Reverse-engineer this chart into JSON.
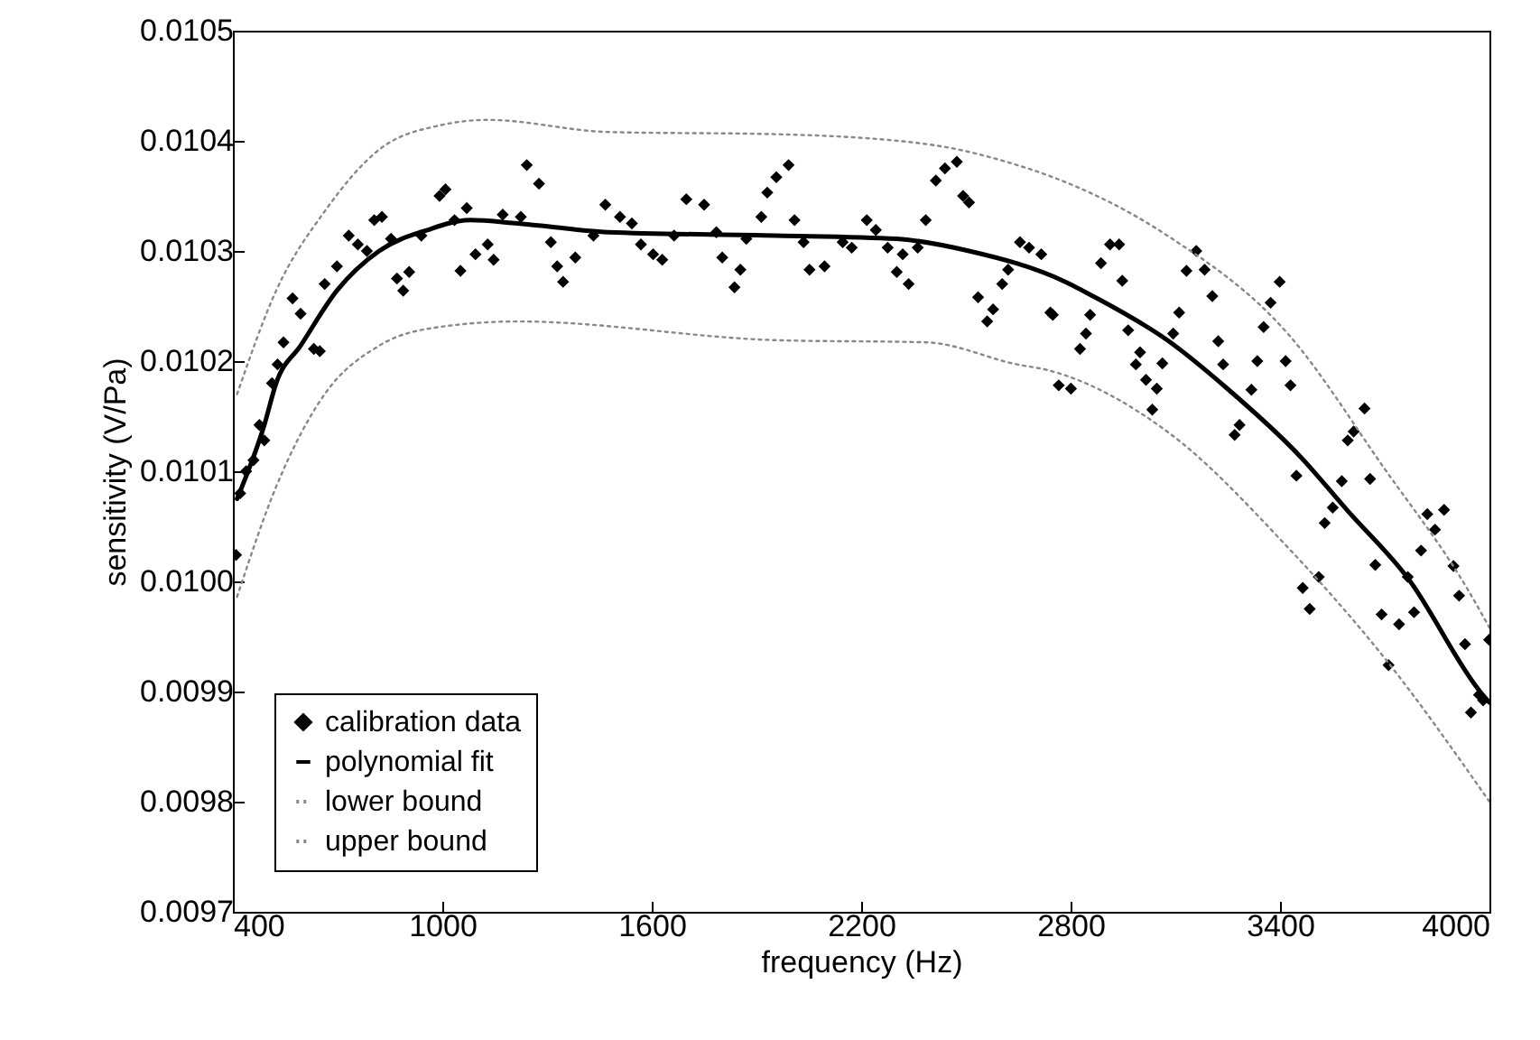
{
  "chart_data": {
    "type": "scatter",
    "xlabel": "frequency (Hz)",
    "ylabel": "sensitivity (V/Pa)",
    "xlim": [
      400,
      4000
    ],
    "xticks": [
      400,
      1000,
      1600,
      2200,
      2800,
      3400,
      4000
    ],
    "ylim": [
      0.0097,
      0.0105
    ],
    "yticks": [
      0.0097,
      0.0098,
      0.0099,
      {
        "value": 0.01,
        "label": "0.0100"
      },
      0.0101,
      0.0102,
      0.0103,
      0.0104,
      0.0105
    ],
    "grid": false,
    "legend": "bottom left",
    "series": [
      {
        "name": "calibration data",
        "marker": "diamond",
        "color": "#000000",
        "x": [
          409,
          421,
          438,
          459,
          476,
          490,
          512,
          528,
          545,
          571,
          594,
          632,
          649,
          663,
          698,
          732,
          758,
          784,
          805,
          827,
          853,
          870,
          888,
          905,
          940,
          992,
          1009,
          1035,
          1070,
          1052,
          1095,
          1130,
          1147,
          1173,
          1225,
          1242,
          1277,
          1311,
          1329,
          1346,
          1381,
          1433,
          1467,
          1509,
          1543,
          1569,
          1604,
          1630,
          1664,
          1699,
          1750,
          1785,
          1802,
          1854,
          1837,
          1871,
          1914,
          1931,
          1957,
          1992,
          2009,
          2035,
          2052,
          2095,
          2147,
          2173,
          2216,
          2242,
          2276,
          2302,
          2319,
          2336,
          2362,
          2385,
          2414,
          2440,
          2474,
          2492,
          2509,
          2535,
          2561,
          2578,
          2604,
          2621,
          2655,
          2681,
          2716,
          2742,
          2749,
          2766,
          2801,
          2827,
          2844,
          2856,
          2887,
          2913,
          2939,
          2948,
          2965,
          2987,
          2999,
          3016,
          3034,
          3047,
          3063,
          3094,
          3111,
          3132,
          3160,
          3184,
          3206,
          3223,
          3237,
          3270,
          3284,
          3318,
          3335,
          3353,
          3373,
          3399,
          3416,
          3430,
          3447,
          3465,
          3485,
          3511,
          3528,
          3551,
          3577,
          3594,
          3611,
          3642,
          3658,
          3673,
          3691,
          3711,
          3741,
          3766,
          3784,
          3804,
          3822,
          3844,
          3870,
          3897,
          3913,
          3930,
          3947,
          3970,
          3982,
          3999
        ],
        "values": [
          0.010024,
          0.01008,
          0.0101,
          0.01011,
          0.010142,
          0.010128,
          0.01018,
          0.010197,
          0.010217,
          0.010257,
          0.010243,
          0.010211,
          0.010209,
          0.01027,
          0.010286,
          0.010314,
          0.010306,
          0.0103,
          0.010328,
          0.010331,
          0.010311,
          0.010275,
          0.010264,
          0.010281,
          0.010314,
          0.01035,
          0.010356,
          0.010328,
          0.010339,
          0.010282,
          0.010297,
          0.010306,
          0.010292,
          0.010333,
          0.010331,
          0.010378,
          0.010361,
          0.010308,
          0.010286,
          0.010272,
          0.010294,
          0.010314,
          0.010342,
          0.010331,
          0.010325,
          0.010306,
          0.010297,
          0.010292,
          0.010314,
          0.010347,
          0.010342,
          0.010317,
          0.010294,
          0.010283,
          0.010267,
          0.010311,
          0.010331,
          0.010353,
          0.010367,
          0.010378,
          0.010328,
          0.010308,
          0.010283,
          0.010286,
          0.010308,
          0.010303,
          0.010328,
          0.010319,
          0.010303,
          0.010281,
          0.010297,
          0.01027,
          0.010303,
          0.010328,
          0.010364,
          0.010375,
          0.010381,
          0.01035,
          0.010344,
          0.010258,
          0.010236,
          0.010247,
          0.01027,
          0.010283,
          0.010308,
          0.010303,
          0.010297,
          0.010244,
          0.010242,
          0.010178,
          0.010175,
          0.010211,
          0.010225,
          0.010242,
          0.010289,
          0.010306,
          0.010306,
          0.010273,
          0.010228,
          0.010197,
          0.010208,
          0.010183,
          0.010156,
          0.010175,
          0.010198,
          0.010225,
          0.010244,
          0.010282,
          0.0103,
          0.010283,
          0.010259,
          0.010218,
          0.010197,
          0.010133,
          0.010142,
          0.010174,
          0.0102,
          0.010231,
          0.010253,
          0.010272,
          0.0102,
          0.010178,
          0.010096,
          0.009994,
          0.009975,
          0.010004,
          0.010053,
          0.010067,
          0.010091,
          0.010128,
          0.010136,
          0.010157,
          0.010093,
          0.010015,
          0.00997,
          0.009924,
          0.009961,
          0.010004,
          0.009972,
          0.010028,
          0.010061,
          0.010047,
          0.010065,
          0.010014,
          0.009987,
          0.009943,
          0.009881,
          0.009897,
          0.009892,
          0.009947
        ]
      },
      {
        "name": "polynomial fit",
        "type": "line",
        "line_style": "solid",
        "color": "#000000",
        "x": [
          412,
          490,
          524,
          594,
          698,
          819,
          957,
          1080,
          1216,
          1476,
          1957,
          2302,
          2509,
          2785,
          2870,
          3077,
          3249,
          3456,
          3594,
          3766,
          3973,
          4000
        ],
        "values": [
          0.010075,
          0.010142,
          0.01018,
          0.010214,
          0.010264,
          0.0103,
          0.010319,
          0.010328,
          0.010325,
          0.010317,
          0.010314,
          0.010311,
          0.0103,
          0.010272,
          0.010258,
          0.010219,
          0.010175,
          0.010114,
          0.010064,
          0.010003,
          0.0099,
          0.00989
        ]
      },
      {
        "name": "lower bound",
        "type": "line",
        "line_style": "dotted",
        "color": "#888888",
        "x": [
          412,
          524,
          663,
          819,
          992,
          1216,
          1957,
          2388,
          2647,
          2732,
          3077,
          3422,
          3698,
          4000
        ],
        "values": [
          0.009986,
          0.010086,
          0.01017,
          0.010214,
          0.010231,
          0.010236,
          0.010219,
          0.010217,
          0.010197,
          0.010192,
          0.010136,
          0.010031,
          0.009931,
          0.0098
        ]
      },
      {
        "name": "upper bound",
        "type": "line",
        "line_style": "dotted",
        "color": "#888888",
        "x": [
          412,
          524,
          663,
          819,
          992,
          1130,
          1476,
          1957,
          2388,
          2647,
          2732,
          3077,
          3422,
          3698,
          3939,
          4000
        ],
        "values": [
          0.01017,
          0.010264,
          0.010336,
          0.010392,
          0.010414,
          0.010419,
          0.010408,
          0.010406,
          0.010397,
          0.010378,
          0.010369,
          0.010314,
          0.010225,
          0.010103,
          0.009992,
          0.009958
        ]
      }
    ]
  }
}
